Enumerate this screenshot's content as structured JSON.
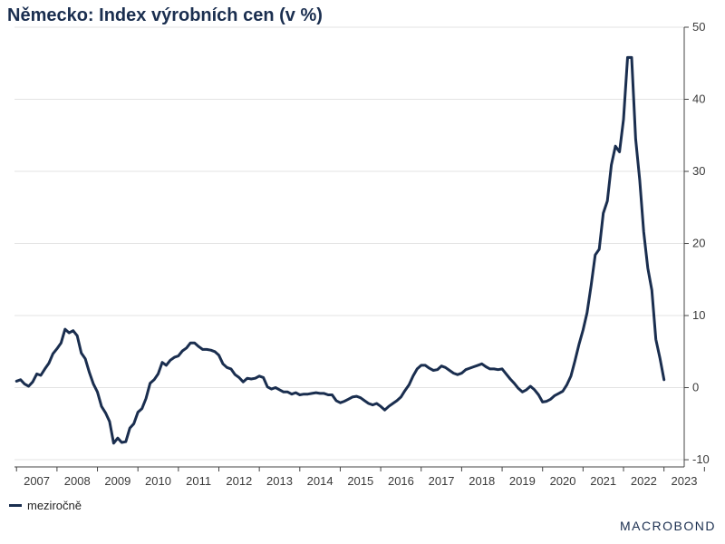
{
  "title": "Německo: Index výrobních cen (v %)",
  "legend": {
    "label": "meziročně",
    "color": "#1a2e4f"
  },
  "logo": "MACROBOND",
  "chart_data": {
    "type": "line",
    "title": "Německo: Index výrobních cen (v %)",
    "y_ticks": [
      50,
      40,
      30,
      20,
      10,
      0,
      -10
    ],
    "ylim": [
      -11,
      50
    ],
    "x_tick_labels": [
      "2007",
      "2008",
      "2009",
      "2010",
      "2011",
      "2012",
      "2013",
      "2014",
      "2015",
      "2016",
      "2017",
      "2018",
      "2019",
      "2020",
      "2021",
      "2022",
      "2023"
    ],
    "xlim": [
      2006.95,
      2023.5
    ],
    "grid": true,
    "legend_position": "bottom-left",
    "series": [
      {
        "name": "meziročně",
        "color": "#1a2e4f",
        "points": [
          [
            2007.0,
            0.9
          ],
          [
            2007.1,
            1.1
          ],
          [
            2007.2,
            0.5
          ],
          [
            2007.3,
            0.2
          ],
          [
            2007.4,
            0.8
          ],
          [
            2007.5,
            1.9
          ],
          [
            2007.6,
            1.7
          ],
          [
            2007.7,
            2.6
          ],
          [
            2007.8,
            3.4
          ],
          [
            2007.9,
            4.7
          ],
          [
            2008.0,
            5.4
          ],
          [
            2008.1,
            6.2
          ],
          [
            2008.2,
            8.1
          ],
          [
            2008.3,
            7.6
          ],
          [
            2008.4,
            7.9
          ],
          [
            2008.5,
            7.2
          ],
          [
            2008.6,
            4.8
          ],
          [
            2008.7,
            4.0
          ],
          [
            2008.8,
            2.1
          ],
          [
            2008.9,
            0.5
          ],
          [
            2009.0,
            -0.6
          ],
          [
            2009.1,
            -2.6
          ],
          [
            2009.2,
            -3.5
          ],
          [
            2009.3,
            -4.7
          ],
          [
            2009.4,
            -7.7
          ],
          [
            2009.5,
            -7.0
          ],
          [
            2009.6,
            -7.6
          ],
          [
            2009.7,
            -7.5
          ],
          [
            2009.8,
            -5.6
          ],
          [
            2009.9,
            -5.0
          ],
          [
            2010.0,
            -3.4
          ],
          [
            2010.1,
            -2.9
          ],
          [
            2010.2,
            -1.5
          ],
          [
            2010.3,
            0.6
          ],
          [
            2010.4,
            1.1
          ],
          [
            2010.5,
            1.9
          ],
          [
            2010.6,
            3.5
          ],
          [
            2010.7,
            3.1
          ],
          [
            2010.8,
            3.8
          ],
          [
            2010.9,
            4.2
          ],
          [
            2011.0,
            4.4
          ],
          [
            2011.1,
            5.1
          ],
          [
            2011.2,
            5.5
          ],
          [
            2011.3,
            6.2
          ],
          [
            2011.4,
            6.2
          ],
          [
            2011.5,
            5.7
          ],
          [
            2011.6,
            5.3
          ],
          [
            2011.7,
            5.3
          ],
          [
            2011.8,
            5.2
          ],
          [
            2011.9,
            5.0
          ],
          [
            2012.0,
            4.5
          ],
          [
            2012.1,
            3.3
          ],
          [
            2012.2,
            2.8
          ],
          [
            2012.3,
            2.6
          ],
          [
            2012.4,
            1.8
          ],
          [
            2012.5,
            1.4
          ],
          [
            2012.6,
            0.8
          ],
          [
            2012.7,
            1.3
          ],
          [
            2012.8,
            1.2
          ],
          [
            2012.9,
            1.3
          ],
          [
            2013.0,
            1.6
          ],
          [
            2013.1,
            1.4
          ],
          [
            2013.2,
            0.1
          ],
          [
            2013.3,
            -0.2
          ],
          [
            2013.4,
            0.0
          ],
          [
            2013.5,
            -0.3
          ],
          [
            2013.6,
            -0.6
          ],
          [
            2013.7,
            -0.6
          ],
          [
            2013.8,
            -0.9
          ],
          [
            2013.9,
            -0.7
          ],
          [
            2014.0,
            -1.0
          ],
          [
            2014.1,
            -0.9
          ],
          [
            2014.2,
            -0.9
          ],
          [
            2014.3,
            -0.8
          ],
          [
            2014.4,
            -0.7
          ],
          [
            2014.5,
            -0.8
          ],
          [
            2014.6,
            -0.8
          ],
          [
            2014.7,
            -1.0
          ],
          [
            2014.8,
            -1.0
          ],
          [
            2014.9,
            -1.8
          ],
          [
            2015.0,
            -2.1
          ],
          [
            2015.1,
            -1.9
          ],
          [
            2015.2,
            -1.6
          ],
          [
            2015.3,
            -1.3
          ],
          [
            2015.4,
            -1.2
          ],
          [
            2015.5,
            -1.4
          ],
          [
            2015.6,
            -1.8
          ],
          [
            2015.7,
            -2.2
          ],
          [
            2015.8,
            -2.4
          ],
          [
            2015.9,
            -2.2
          ],
          [
            2016.0,
            -2.6
          ],
          [
            2016.1,
            -3.1
          ],
          [
            2016.2,
            -2.6
          ],
          [
            2016.3,
            -2.2
          ],
          [
            2016.4,
            -1.8
          ],
          [
            2016.5,
            -1.3
          ],
          [
            2016.6,
            -0.4
          ],
          [
            2016.7,
            0.4
          ],
          [
            2016.8,
            1.6
          ],
          [
            2016.9,
            2.6
          ],
          [
            2017.0,
            3.1
          ],
          [
            2017.1,
            3.1
          ],
          [
            2017.2,
            2.7
          ],
          [
            2017.3,
            2.4
          ],
          [
            2017.4,
            2.5
          ],
          [
            2017.5,
            3.0
          ],
          [
            2017.6,
            2.8
          ],
          [
            2017.7,
            2.4
          ],
          [
            2017.8,
            2.0
          ],
          [
            2017.9,
            1.8
          ],
          [
            2018.0,
            2.0
          ],
          [
            2018.1,
            2.5
          ],
          [
            2018.2,
            2.7
          ],
          [
            2018.3,
            2.9
          ],
          [
            2018.4,
            3.1
          ],
          [
            2018.5,
            3.3
          ],
          [
            2018.6,
            2.9
          ],
          [
            2018.7,
            2.6
          ],
          [
            2018.8,
            2.6
          ],
          [
            2018.9,
            2.5
          ],
          [
            2019.0,
            2.6
          ],
          [
            2019.1,
            1.9
          ],
          [
            2019.2,
            1.2
          ],
          [
            2019.3,
            0.6
          ],
          [
            2019.4,
            -0.1
          ],
          [
            2019.5,
            -0.6
          ],
          [
            2019.6,
            -0.3
          ],
          [
            2019.7,
            0.2
          ],
          [
            2019.8,
            -0.3
          ],
          [
            2019.9,
            -1.0
          ],
          [
            2020.0,
            -2.0
          ],
          [
            2020.1,
            -1.9
          ],
          [
            2020.2,
            -1.6
          ],
          [
            2020.3,
            -1.1
          ],
          [
            2020.4,
            -0.8
          ],
          [
            2020.5,
            -0.5
          ],
          [
            2020.6,
            0.4
          ],
          [
            2020.7,
            1.6
          ],
          [
            2020.8,
            3.7
          ],
          [
            2020.9,
            6.0
          ],
          [
            2021.0,
            8.0
          ],
          [
            2021.1,
            10.4
          ],
          [
            2021.2,
            14.2
          ],
          [
            2021.3,
            18.4
          ],
          [
            2021.4,
            19.2
          ],
          [
            2021.5,
            24.2
          ],
          [
            2021.6,
            25.9
          ],
          [
            2021.7,
            30.9
          ],
          [
            2021.8,
            33.5
          ],
          [
            2021.9,
            32.7
          ],
          [
            2022.0,
            37.2
          ],
          [
            2022.1,
            45.8
          ],
          [
            2022.2,
            45.8
          ],
          [
            2022.3,
            34.5
          ],
          [
            2022.4,
            28.8
          ],
          [
            2022.5,
            21.6
          ],
          [
            2022.6,
            16.6
          ],
          [
            2022.7,
            13.5
          ],
          [
            2022.8,
            6.7
          ],
          [
            2022.9,
            4.1
          ],
          [
            2023.0,
            1.1
          ]
        ]
      }
    ]
  }
}
